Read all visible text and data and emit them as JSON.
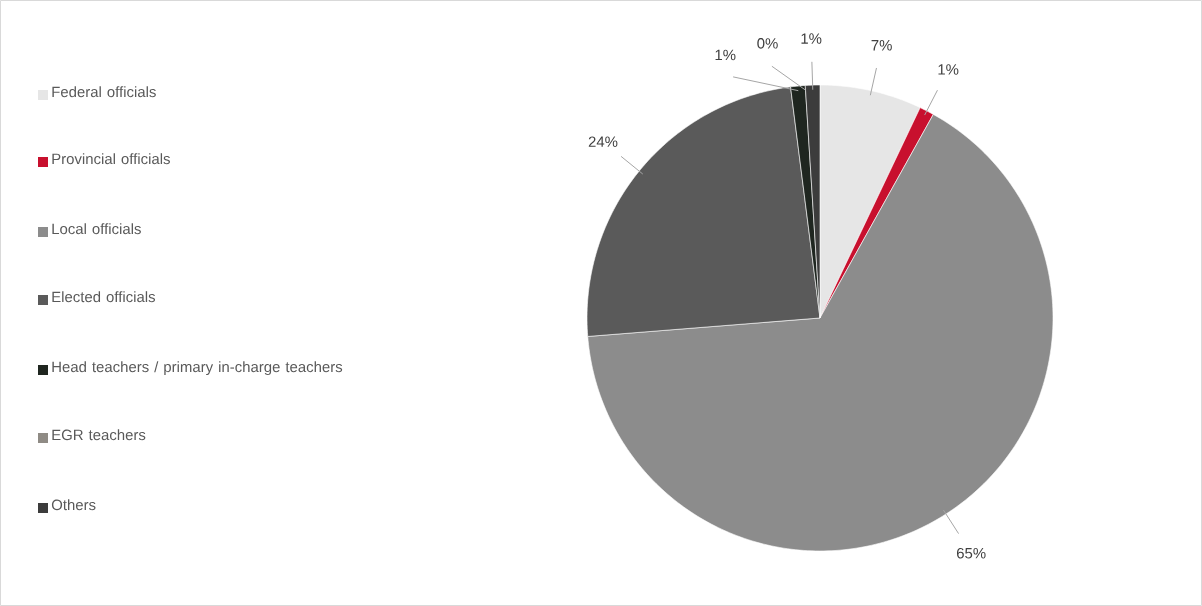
{
  "chart_data": {
    "type": "pie",
    "categories": [
      "Federal officials",
      "Provincial officials",
      "Local officials",
      "Elected officials",
      "Head teachers / primary in-charge teachers",
      "EGR teachers",
      "Others"
    ],
    "values": [
      7,
      1,
      65,
      24,
      1,
      0,
      1
    ],
    "value_labels": [
      "7%",
      "1%",
      "65%",
      "24%",
      "1%",
      "0%",
      "1%"
    ],
    "colors": [
      "#e6e6e6",
      "#c8102e",
      "#8c8c8c",
      "#5a5a5a",
      "#1f2620",
      "#8f8b85",
      "#3c3c3c"
    ],
    "legend": "left"
  }
}
